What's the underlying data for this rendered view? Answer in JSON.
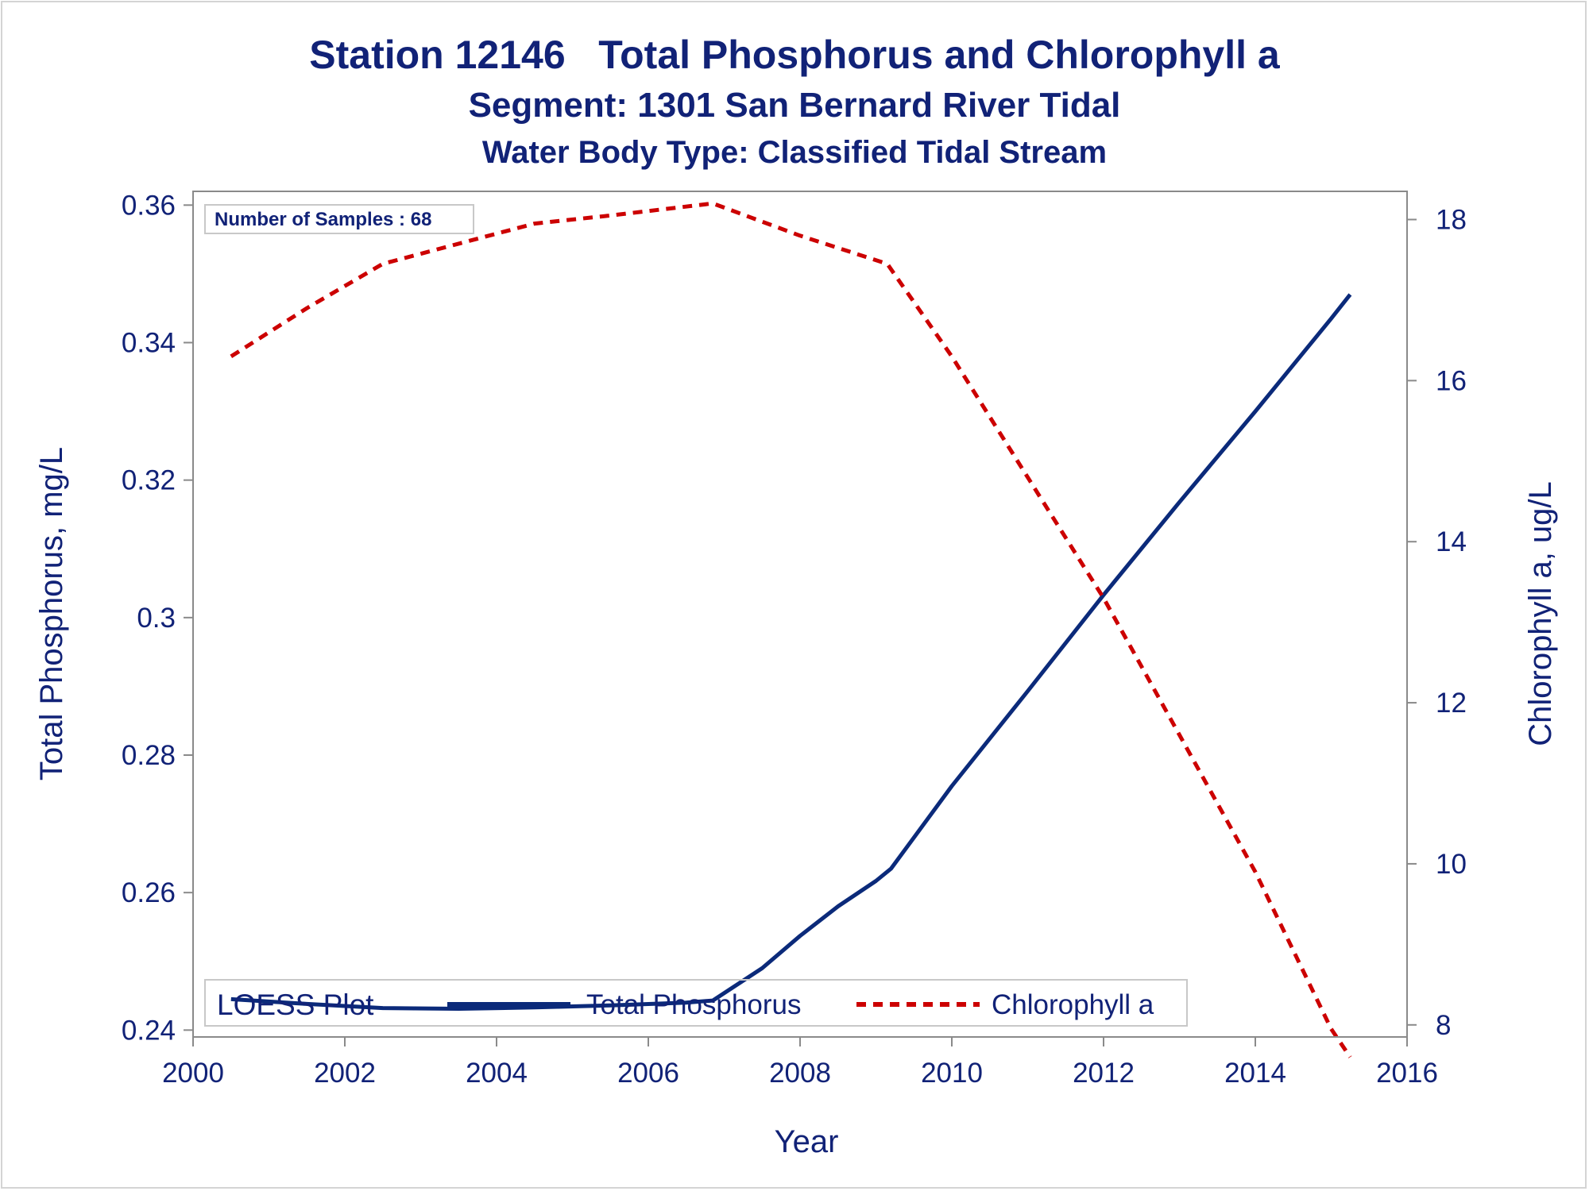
{
  "chart_data": {
    "type": "line",
    "title": "Station 12146   Total Phosphorus and Chlorophyll a",
    "subtitle": "Segment: 1301  San Bernard River Tidal",
    "subtitle2": "Water Body Type: Classified Tidal Stream",
    "xlabel": "Year",
    "ylabel_left": "Total Phosphorus, mg/L",
    "ylabel_right": "Chlorophyll a, ug/L",
    "xlim": [
      2000,
      2016
    ],
    "ylim_left": [
      0.239,
      0.362
    ],
    "ylim_right": [
      7.85,
      18.35
    ],
    "x_ticks": [
      2000,
      2002,
      2004,
      2006,
      2008,
      2010,
      2012,
      2014,
      2016
    ],
    "x_tick_labels": [
      "2000",
      "2002",
      "2004",
      "2006",
      "2008",
      "2010",
      "2012",
      "2014",
      "2016"
    ],
    "y_left_ticks": [
      0.24,
      0.26,
      0.28,
      0.3,
      0.32,
      0.34,
      0.36
    ],
    "y_left_tick_labels": [
      "0.24",
      "0.26",
      "0.28",
      "0.3",
      "0.32",
      "0.34",
      "0.36"
    ],
    "y_right_ticks": [
      8,
      10,
      12,
      14,
      16,
      18
    ],
    "y_right_tick_labels": [
      "8",
      "10",
      "12",
      "14",
      "16",
      "18"
    ],
    "inset_text": "Number of Samples : 68",
    "legend": {
      "title": "LOESS Plot",
      "position": "bottom-inside",
      "entries": [
        "Total Phosphorus",
        "Chlorophyll a"
      ]
    },
    "series": [
      {
        "name": "Total Phosphorus",
        "axis": "left",
        "color": "#0b2a7a",
        "style": "solid",
        "x": [
          2000.5,
          2001.5,
          2002.5,
          2003.5,
          2004.5,
          2005.5,
          2006.5,
          2006.85,
          2007.5,
          2008.0,
          2008.5,
          2009.0,
          2009.2,
          2010.0,
          2011.0,
          2012.0,
          2013.0,
          2014.0,
          2015.0,
          2015.25
        ],
        "y": [
          0.2445,
          0.2438,
          0.2432,
          0.2431,
          0.2433,
          0.2436,
          0.244,
          0.2443,
          0.249,
          0.2537,
          0.258,
          0.2617,
          0.2635,
          0.2755,
          0.2893,
          0.3033,
          0.3168,
          0.33,
          0.3435,
          0.347
        ]
      },
      {
        "name": "Chlorophyll a",
        "axis": "right",
        "color": "#cc0000",
        "style": "dashed",
        "x": [
          2000.5,
          2001.5,
          2002.5,
          2003.5,
          2004.5,
          2005.5,
          2006.85,
          2008.0,
          2009.15,
          2010.0,
          2011.0,
          2012.0,
          2013.0,
          2014.0,
          2015.0,
          2015.25
        ],
        "y": [
          16.3,
          16.9,
          17.45,
          17.7,
          17.95,
          18.05,
          18.2,
          17.8,
          17.45,
          16.3,
          14.8,
          13.3,
          11.6,
          9.9,
          7.95,
          7.6
        ]
      }
    ]
  }
}
